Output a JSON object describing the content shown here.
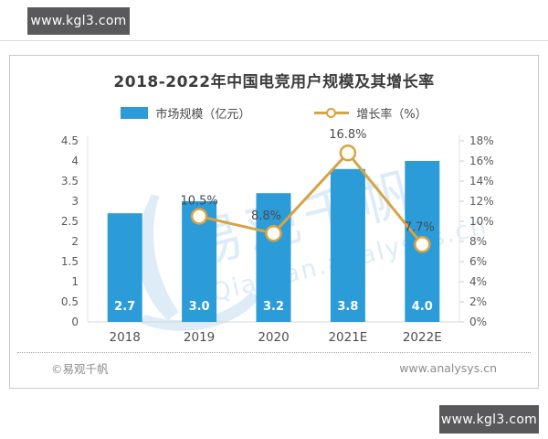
{
  "page": {
    "watermark_badge_top": "www.kgl3.com",
    "watermark_badge_bottom": "www.kgl3.com"
  },
  "chart_data": {
    "type": "bar+line",
    "title": "2018-2022年中国电竞用户规模及其增长率",
    "categories": [
      "2018",
      "2019",
      "2020",
      "2021E",
      "2022E"
    ],
    "series": [
      {
        "name": "市场规模（亿元）",
        "type": "bar",
        "axis": "left",
        "color": "#2b9cd8",
        "values": [
          2.7,
          3.0,
          3.2,
          3.8,
          4.0
        ],
        "labels": [
          "2.7",
          "3.0",
          "3.2",
          "3.8",
          "4.0"
        ]
      },
      {
        "name": "增长率（%）",
        "type": "line",
        "axis": "right",
        "color": "#d7a345",
        "values": [
          null,
          10.5,
          8.8,
          16.8,
          7.7
        ],
        "labels": [
          null,
          "10.5%",
          "8.8%",
          "16.8%",
          "7.7%"
        ]
      }
    ],
    "left_axis": {
      "min": 0,
      "max": 4.5,
      "ticks": [
        "0",
        "0.5",
        "1",
        "1.5",
        "2",
        "2.5",
        "3",
        "3.5",
        "4",
        "4.5"
      ]
    },
    "right_axis": {
      "min": 0,
      "max": 18,
      "ticks": [
        "0%",
        "2%",
        "4%",
        "6%",
        "8%",
        "10%",
        "12%",
        "14%",
        "16%",
        "18%"
      ]
    },
    "legend_position": "top-center",
    "grid": false
  },
  "watermark": {
    "logo_text": "易观千帆",
    "sub_text": "Qianfan.analysys.cn"
  },
  "footer": {
    "source_left": "©易观千帆",
    "source_right": "www.analysys.cn"
  },
  "colors": {
    "bar": "#2b9cd8",
    "line": "#d7a345",
    "marker_fill": "#fffdf5",
    "badge_bg": "#59595b",
    "watermark": "#c3ddef"
  }
}
